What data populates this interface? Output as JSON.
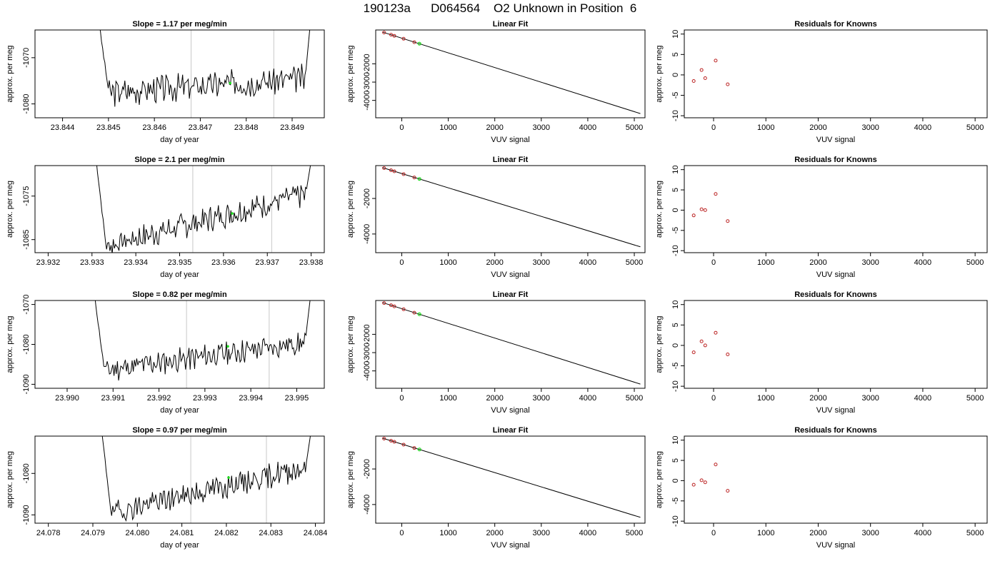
{
  "header": {
    "title": "190123a      D064564    O2 Unknown in Position  6"
  },
  "chart_data": [
    {
      "type": "line",
      "title": "Slope =  1.17  per meg/min",
      "xlabel": "day of year",
      "ylabel": "approx. per meg",
      "xlim": [
        23.8434,
        23.8497
      ],
      "ylim": [
        -1083,
        -1064
      ],
      "xticks": [
        {
          "v": 23.844,
          "l": "23.844"
        },
        {
          "v": 23.845,
          "l": "23.845"
        },
        {
          "v": 23.846,
          "l": "23.846"
        },
        {
          "v": 23.847,
          "l": "23.847"
        },
        {
          "v": 23.848,
          "l": "23.848"
        },
        {
          "v": 23.849,
          "l": "23.849"
        }
      ],
      "yticks": [
        {
          "v": -1070,
          "l": "-1070"
        },
        {
          "v": -1080,
          "l": "-1080"
        }
      ],
      "vlines": [
        23.8468,
        23.8486
      ],
      "x_start": 23.8448,
      "x_end": 23.8494,
      "level_start": -1077.5,
      "level_end": -1074.5,
      "head": -1063,
      "tail": -1062,
      "marker": {
        "x": 23.84765,
        "y": -1075.5
      },
      "seed": 3
    },
    {
      "type": "scatter+line",
      "title": "Linear Fit",
      "xlabel": "VUV signal",
      "ylabel": "approx. per meg",
      "xlim": [
        -560,
        5230
      ],
      "ylim": [
        -4950,
        -150
      ],
      "xticks": [
        {
          "v": 0,
          "l": "0"
        },
        {
          "v": 1000,
          "l": "1000"
        },
        {
          "v": 2000,
          "l": "2000"
        },
        {
          "v": 3000,
          "l": "3000"
        },
        {
          "v": 4000,
          "l": "4000"
        },
        {
          "v": 5000,
          "l": "5000"
        }
      ],
      "yticks": [
        {
          "v": -2000,
          "l": "-2000"
        },
        {
          "v": -3000,
          "l": "-3000"
        },
        {
          "v": -4000,
          "l": "-4000"
        }
      ],
      "fit_line": [
        [
          -420,
          -260
        ],
        [
          5130,
          -4720
        ]
      ],
      "knowns": [
        [
          -380,
          -290
        ],
        [
          -230,
          -410
        ],
        [
          -160,
          -470
        ],
        [
          40,
          -630
        ],
        [
          270,
          -820
        ]
      ],
      "unknown": [
        [
          380,
          -900
        ]
      ]
    },
    {
      "type": "scatter",
      "title": "Residuals for Knowns",
      "xlabel": "VUV signal",
      "ylabel": "approx. per meg",
      "xlim": [
        -560,
        5230
      ],
      "ylim": [
        -10.5,
        11
      ],
      "xticks": [
        {
          "v": 0,
          "l": "0"
        },
        {
          "v": 1000,
          "l": "1000"
        },
        {
          "v": 2000,
          "l": "2000"
        },
        {
          "v": 3000,
          "l": "3000"
        },
        {
          "v": 4000,
          "l": "4000"
        },
        {
          "v": 5000,
          "l": "5000"
        }
      ],
      "yticks": [
        {
          "v": -10,
          "l": "-10"
        },
        {
          "v": -5,
          "l": "-5"
        },
        {
          "v": 0,
          "l": "0"
        },
        {
          "v": 5,
          "l": "5"
        },
        {
          "v": 10,
          "l": "10"
        }
      ],
      "points": [
        [
          -380,
          -1.5
        ],
        [
          -230,
          1.2
        ],
        [
          -160,
          -0.8
        ],
        [
          40,
          3.5
        ],
        [
          270,
          -2.3
        ]
      ]
    },
    {
      "type": "line",
      "title": "Slope =  2.1  per meg/min",
      "xlabel": "day of year",
      "ylabel": "approx. per meg",
      "xlim": [
        23.9317,
        23.9383
      ],
      "ylim": [
        -1088,
        -1068
      ],
      "xticks": [
        {
          "v": 23.932,
          "l": "23.932"
        },
        {
          "v": 23.933,
          "l": "23.933"
        },
        {
          "v": 23.934,
          "l": "23.934"
        },
        {
          "v": 23.935,
          "l": "23.935"
        },
        {
          "v": 23.936,
          "l": "23.936"
        },
        {
          "v": 23.937,
          "l": "23.937"
        },
        {
          "v": 23.938,
          "l": "23.938"
        }
      ],
      "yticks": [
        {
          "v": -1075,
          "l": "-1075"
        },
        {
          "v": -1085,
          "l": "-1085"
        }
      ],
      "vlines": [
        23.9353,
        23.9371
      ],
      "x_start": 23.9331,
      "x_end": 23.938,
      "level_start": -1086.5,
      "level_end": -1074.5,
      "head": -1067,
      "tail": -1067,
      "marker": {
        "x": 23.9362,
        "y": -1079
      },
      "seed": 7
    },
    {
      "type": "scatter+line",
      "title": "Linear Fit",
      "xlabel": "VUV signal",
      "ylabel": "approx. per meg",
      "xlim": [
        -560,
        5230
      ],
      "ylim": [
        -5050,
        -150
      ],
      "xticks": [
        {
          "v": 0,
          "l": "0"
        },
        {
          "v": 1000,
          "l": "1000"
        },
        {
          "v": 2000,
          "l": "2000"
        },
        {
          "v": 3000,
          "l": "3000"
        },
        {
          "v": 4000,
          "l": "4000"
        },
        {
          "v": 5000,
          "l": "5000"
        }
      ],
      "yticks": [
        {
          "v": -2000,
          "l": "-2000"
        },
        {
          "v": -4000,
          "l": "-4000"
        }
      ],
      "fit_line": [
        [
          -420,
          -260
        ],
        [
          5130,
          -4720
        ]
      ],
      "knowns": [
        [
          -380,
          -290
        ],
        [
          -230,
          -410
        ],
        [
          -160,
          -470
        ],
        [
          40,
          -630
        ],
        [
          270,
          -820
        ]
      ],
      "unknown": [
        [
          380,
          -900
        ]
      ]
    },
    {
      "type": "scatter",
      "title": "Residuals for Knowns",
      "xlabel": "VUV signal",
      "ylabel": "approx. per meg",
      "xlim": [
        -560,
        5230
      ],
      "ylim": [
        -10.5,
        11
      ],
      "xticks": [
        {
          "v": 0,
          "l": "0"
        },
        {
          "v": 1000,
          "l": "1000"
        },
        {
          "v": 2000,
          "l": "2000"
        },
        {
          "v": 3000,
          "l": "3000"
        },
        {
          "v": 4000,
          "l": "4000"
        },
        {
          "v": 5000,
          "l": "5000"
        }
      ],
      "yticks": [
        {
          "v": -10,
          "l": "-10"
        },
        {
          "v": -5,
          "l": "-5"
        },
        {
          "v": 0,
          "l": "0"
        },
        {
          "v": 5,
          "l": "5"
        },
        {
          "v": 10,
          "l": "10"
        }
      ],
      "points": [
        [
          -380,
          -1.3
        ],
        [
          -230,
          0.2
        ],
        [
          -160,
          0.0
        ],
        [
          40,
          4.0
        ],
        [
          270,
          -2.7
        ]
      ]
    },
    {
      "type": "line",
      "title": "Slope =  0.82  per meg/min",
      "xlabel": "day of year",
      "ylabel": "approx. per meg",
      "xlim": [
        23.9893,
        23.9956
      ],
      "ylim": [
        -1091,
        -1069
      ],
      "xticks": [
        {
          "v": 23.99,
          "l": "23.990"
        },
        {
          "v": 23.991,
          "l": "23.991"
        },
        {
          "v": 23.992,
          "l": "23.992"
        },
        {
          "v": 23.993,
          "l": "23.993"
        },
        {
          "v": 23.994,
          "l": "23.994"
        },
        {
          "v": 23.995,
          "l": "23.995"
        }
      ],
      "yticks": [
        {
          "v": -1070,
          "l": "-1070"
        },
        {
          "v": -1080,
          "l": "-1080"
        },
        {
          "v": -1090,
          "l": "-1090"
        }
      ],
      "vlines": [
        23.9926,
        23.9944
      ],
      "x_start": 23.9906,
      "x_end": 23.9953,
      "level_start": -1086.5,
      "level_end": -1079.5,
      "head": -1068,
      "tail": -1068,
      "marker": {
        "x": 23.9935,
        "y": -1080.5
      },
      "seed": 11
    },
    {
      "type": "scatter+line",
      "title": "Linear Fit",
      "xlabel": "VUV signal",
      "ylabel": "approx. per meg",
      "xlim": [
        -560,
        5230
      ],
      "ylim": [
        -4950,
        -150
      ],
      "xticks": [
        {
          "v": 0,
          "l": "0"
        },
        {
          "v": 1000,
          "l": "1000"
        },
        {
          "v": 2000,
          "l": "2000"
        },
        {
          "v": 3000,
          "l": "3000"
        },
        {
          "v": 4000,
          "l": "4000"
        },
        {
          "v": 5000,
          "l": "5000"
        }
      ],
      "yticks": [
        {
          "v": -2000,
          "l": "-2000"
        },
        {
          "v": -3000,
          "l": "-3000"
        },
        {
          "v": -4000,
          "l": "-4000"
        }
      ],
      "fit_line": [
        [
          -420,
          -260
        ],
        [
          5130,
          -4720
        ]
      ],
      "knowns": [
        [
          -380,
          -290
        ],
        [
          -230,
          -410
        ],
        [
          -160,
          -470
        ],
        [
          40,
          -630
        ],
        [
          270,
          -820
        ]
      ],
      "unknown": [
        [
          380,
          -900
        ]
      ]
    },
    {
      "type": "scatter",
      "title": "Residuals for Knowns",
      "xlabel": "VUV signal",
      "ylabel": "approx. per meg",
      "xlim": [
        -560,
        5230
      ],
      "ylim": [
        -10.5,
        11
      ],
      "xticks": [
        {
          "v": 0,
          "l": "0"
        },
        {
          "v": 1000,
          "l": "1000"
        },
        {
          "v": 2000,
          "l": "2000"
        },
        {
          "v": 3000,
          "l": "3000"
        },
        {
          "v": 4000,
          "l": "4000"
        },
        {
          "v": 5000,
          "l": "5000"
        }
      ],
      "yticks": [
        {
          "v": -10,
          "l": "-10"
        },
        {
          "v": -5,
          "l": "-5"
        },
        {
          "v": 0,
          "l": "0"
        },
        {
          "v": 5,
          "l": "5"
        },
        {
          "v": 10,
          "l": "10"
        }
      ],
      "points": [
        [
          -380,
          -1.7
        ],
        [
          -230,
          1.0
        ],
        [
          -160,
          0.0
        ],
        [
          40,
          3.1
        ],
        [
          270,
          -2.2
        ]
      ]
    },
    {
      "type": "line",
      "title": "Slope =  0.97  per meg/min",
      "xlabel": "day of year",
      "ylabel": "approx. per meg",
      "xlim": [
        24.0777,
        24.0842
      ],
      "ylim": [
        -1092,
        -1071
      ],
      "xticks": [
        {
          "v": 24.078,
          "l": "24.078"
        },
        {
          "v": 24.079,
          "l": "24.079"
        },
        {
          "v": 24.08,
          "l": "24.080"
        },
        {
          "v": 24.081,
          "l": "24.081"
        },
        {
          "v": 24.082,
          "l": "24.082"
        },
        {
          "v": 24.083,
          "l": "24.083"
        },
        {
          "v": 24.084,
          "l": "24.084"
        }
      ],
      "yticks": [
        {
          "v": -1080,
          "l": "-1080"
        },
        {
          "v": -1090,
          "l": "-1090"
        }
      ],
      "vlines": [
        24.0812,
        24.0829
      ],
      "x_start": 24.0792,
      "x_end": 24.0839,
      "level_start": -1089.5,
      "level_end": -1078.5,
      "head": -1070,
      "tail": -1070,
      "marker": {
        "x": 24.08205,
        "y": -1081
      },
      "seed": 19
    },
    {
      "type": "scatter+line",
      "title": "Linear Fit",
      "xlabel": "VUV signal",
      "ylabel": "approx. per meg",
      "xlim": [
        -560,
        5230
      ],
      "ylim": [
        -5050,
        -150
      ],
      "xticks": [
        {
          "v": 0,
          "l": "0"
        },
        {
          "v": 1000,
          "l": "1000"
        },
        {
          "v": 2000,
          "l": "2000"
        },
        {
          "v": 3000,
          "l": "3000"
        },
        {
          "v": 4000,
          "l": "4000"
        },
        {
          "v": 5000,
          "l": "5000"
        }
      ],
      "yticks": [
        {
          "v": -2000,
          "l": "-2000"
        },
        {
          "v": -4000,
          "l": "-4000"
        }
      ],
      "fit_line": [
        [
          -420,
          -260
        ],
        [
          5130,
          -4720
        ]
      ],
      "knowns": [
        [
          -380,
          -290
        ],
        [
          -230,
          -410
        ],
        [
          -160,
          -470
        ],
        [
          40,
          -630
        ],
        [
          270,
          -820
        ]
      ],
      "unknown": [
        [
          380,
          -900
        ]
      ]
    },
    {
      "type": "scatter",
      "title": "Residuals for Knowns",
      "xlabel": "VUV signal",
      "ylabel": "approx. per meg",
      "xlim": [
        -560,
        5230
      ],
      "ylim": [
        -10.5,
        11
      ],
      "xticks": [
        {
          "v": 0,
          "l": "0"
        },
        {
          "v": 1000,
          "l": "1000"
        },
        {
          "v": 2000,
          "l": "2000"
        },
        {
          "v": 3000,
          "l": "3000"
        },
        {
          "v": 4000,
          "l": "4000"
        },
        {
          "v": 5000,
          "l": "5000"
        }
      ],
      "yticks": [
        {
          "v": -10,
          "l": "-10"
        },
        {
          "v": -5,
          "l": "-5"
        },
        {
          "v": 0,
          "l": "0"
        },
        {
          "v": 5,
          "l": "5"
        },
        {
          "v": 10,
          "l": "10"
        }
      ],
      "points": [
        [
          -380,
          -1.0
        ],
        [
          -230,
          0.1
        ],
        [
          -160,
          -0.4
        ],
        [
          40,
          4.0
        ],
        [
          270,
          -2.5
        ]
      ]
    }
  ],
  "colors": {
    "trace": "#000000",
    "vline": "#c8c8c8",
    "unknown_point": "#22dd22",
    "known_point": "#bb2222"
  }
}
